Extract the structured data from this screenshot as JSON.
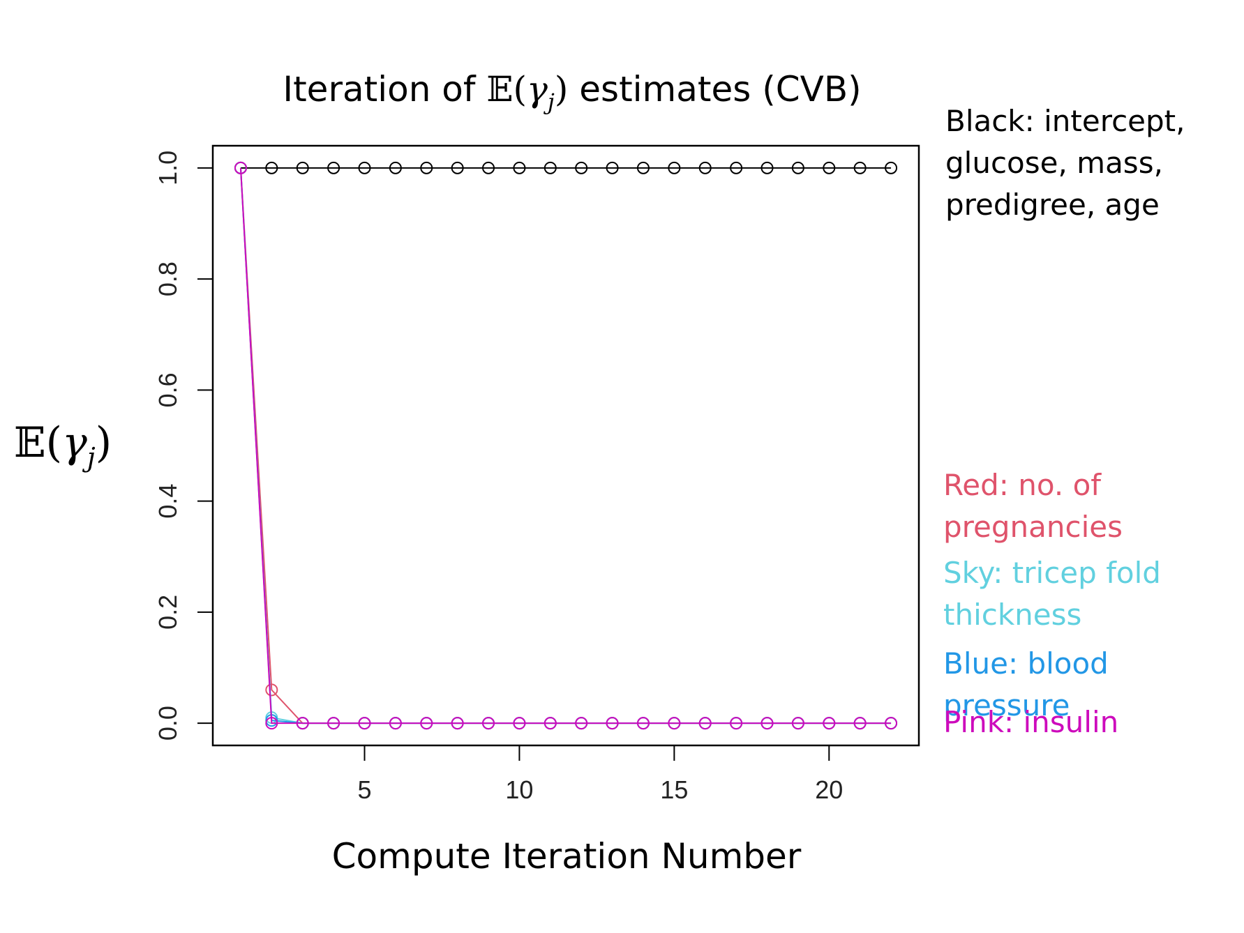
{
  "chart_data": {
    "type": "line",
    "title_parts": {
      "prefix": "Iteration of ",
      "expect": "𝔼(",
      "gamma": "γ",
      "sub": "j",
      "close": ")",
      "suffix": " estimates (CVB)"
    },
    "xlabel": "Compute Iteration Number",
    "ylabel_parts": {
      "expect": "𝔼(",
      "gamma": "γ",
      "sub": "j",
      "close": ")"
    },
    "xlim": [
      0.1,
      22.9
    ],
    "ylim": [
      -0.04,
      1.04
    ],
    "xticks": [
      "5",
      "10",
      "15",
      "20"
    ],
    "xtick_values": [
      5,
      10,
      15,
      20
    ],
    "yticks": [
      "0.0",
      "0.2",
      "0.4",
      "0.6",
      "0.8",
      "1.0"
    ],
    "ytick_values": [
      0,
      0.2,
      0.4,
      0.6,
      0.8,
      1.0
    ],
    "x": [
      1,
      2,
      3,
      4,
      5,
      6,
      7,
      8,
      9,
      10,
      11,
      12,
      13,
      14,
      15,
      16,
      17,
      18,
      19,
      20,
      21,
      22
    ],
    "series": [
      {
        "name": "Black: intercept, glucose, mass, predigree, age",
        "color": "#000000",
        "values": [
          1,
          1,
          1,
          1,
          1,
          1,
          1,
          1,
          1,
          1,
          1,
          1,
          1,
          1,
          1,
          1,
          1,
          1,
          1,
          1,
          1,
          1
        ]
      },
      {
        "name": "Red: no. of pregnancies",
        "color": "#df536b",
        "values": [
          1,
          0.06,
          0,
          0,
          0,
          0,
          0,
          0,
          0,
          0,
          0,
          0,
          0,
          0,
          0,
          0,
          0,
          0,
          0,
          0,
          0,
          0
        ]
      },
      {
        "name": "Sky: tricep fold thickness",
        "color": "#61d0df",
        "values": [
          1,
          0.01,
          0,
          0,
          0,
          0,
          0,
          0,
          0,
          0,
          0,
          0,
          0,
          0,
          0,
          0,
          0,
          0,
          0,
          0,
          0,
          0
        ]
      },
      {
        "name": "Blue: blood pressure",
        "color": "#2297e6",
        "values": [
          1,
          0.005,
          0,
          0,
          0,
          0,
          0,
          0,
          0,
          0,
          0,
          0,
          0,
          0,
          0,
          0,
          0,
          0,
          0,
          0,
          0,
          0
        ]
      },
      {
        "name": "Pink: insulin",
        "color": "#cd0bbc",
        "values": [
          1,
          0,
          0,
          0,
          0,
          0,
          0,
          0,
          0,
          0,
          0,
          0,
          0,
          0,
          0,
          0,
          0,
          0,
          0,
          0,
          0,
          0
        ]
      }
    ],
    "legend": [
      {
        "text": "Black: intercept,\nglucose, mass,\npredigree, age",
        "color": "#000000"
      },
      {
        "text": "Red: no. of\npregnancies",
        "color": "#df536b"
      },
      {
        "text": "Sky: tricep fold\nthickness",
        "color": "#61d0df"
      },
      {
        "text": "Blue: blood pressure",
        "color": "#2297e6"
      },
      {
        "text": "Pink: insulin",
        "color": "#cd0bbc"
      }
    ]
  }
}
